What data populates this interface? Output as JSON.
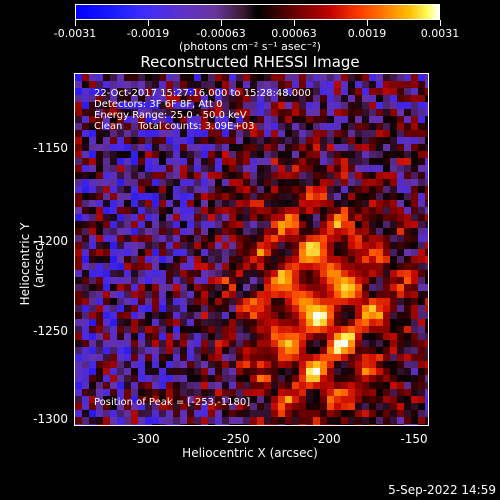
{
  "colorbar": {
    "ticks": [
      "-0.0031",
      "-0.0019",
      "-0.00063",
      "0.00063",
      "0.0019",
      "0.0031"
    ],
    "units": "(photons cm⁻² s⁻¹ asec⁻²)"
  },
  "title": "Reconstructed RHESSI Image",
  "annotations": {
    "time": "22-Oct-2017 15:27:16.000 to 15:28:48.000",
    "detectors": "Detectors: 3F 6F 8F, Att 0",
    "energy": "Energy Range: 25.0 - 50.0 keV",
    "clean": "Clean     Total counts: 3.09E+03",
    "peak": "Position of Peak = [-253,-1180]"
  },
  "axes": {
    "ylabel": "Heliocentric Y (arcsec)",
    "xlabel": "Heliocentric X (arcsec)",
    "yticks": [
      "-1150",
      "-1200",
      "-1250",
      "-1300"
    ],
    "xticks": [
      "-300",
      "-250",
      "-200",
      "-150"
    ]
  },
  "timestamp": "5-Sep-2022 14:59"
}
